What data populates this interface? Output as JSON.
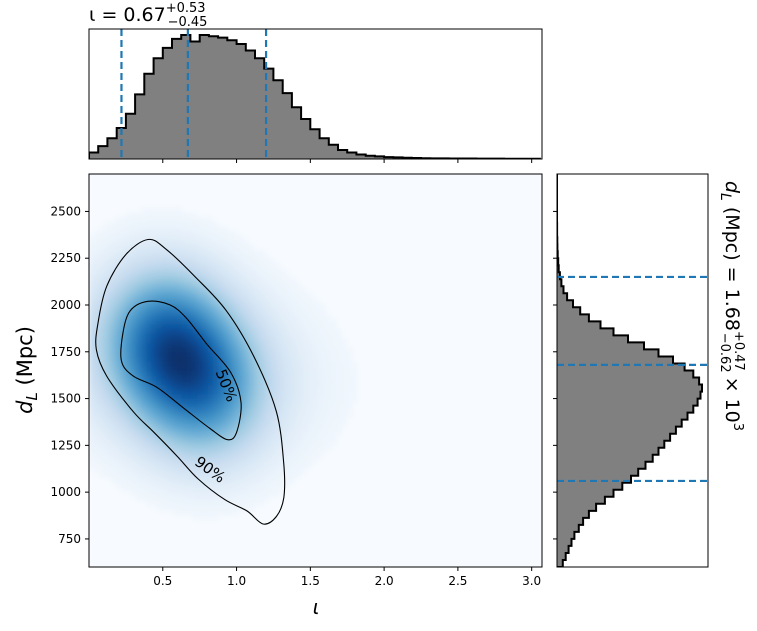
{
  "chart_data": [
    {
      "type": "heatmap",
      "xlabel": "ι",
      "ylabel": "d_L (Mpc)",
      "xlim": [
        0.0,
        3.07
      ],
      "ylim": [
        600,
        2700
      ],
      "x_ticks": [
        "0.5",
        "1.0",
        "1.5",
        "2.0",
        "2.5",
        "3.0"
      ],
      "y_ticks": [
        "750",
        "1000",
        "1250",
        "1500",
        "1750",
        "2000",
        "2250",
        "2500"
      ],
      "colormap": "Blues",
      "density_peaks": [
        {
          "x": 0.47,
          "y": 1850,
          "weight": 1.0
        },
        {
          "x": 0.8,
          "y": 1530,
          "weight": 0.9
        },
        {
          "x": 0.62,
          "y": 1720,
          "weight": 0.7
        }
      ],
      "contours": [
        {
          "label": "50%",
          "points": [
            [
              0.22,
              1700
            ],
            [
              0.23,
              1850
            ],
            [
              0.28,
              1970
            ],
            [
              0.4,
              2020
            ],
            [
              0.55,
              2000
            ],
            [
              0.66,
              1930
            ],
            [
              0.8,
              1790
            ],
            [
              0.96,
              1640
            ],
            [
              1.03,
              1480
            ],
            [
              1.0,
              1320
            ],
            [
              0.94,
              1280
            ],
            [
              0.82,
              1340
            ],
            [
              0.64,
              1450
            ],
            [
              0.46,
              1560
            ],
            [
              0.3,
              1620
            ]
          ]
        },
        {
          "label": "90%",
          "points": [
            [
              0.06,
              1900
            ],
            [
              0.12,
              2100
            ],
            [
              0.25,
              2270
            ],
            [
              0.4,
              2350
            ],
            [
              0.52,
              2300
            ],
            [
              0.72,
              2150
            ],
            [
              0.93,
              1970
            ],
            [
              1.12,
              1720
            ],
            [
              1.27,
              1430
            ],
            [
              1.32,
              1150
            ],
            [
              1.32,
              970
            ],
            [
              1.27,
              870
            ],
            [
              1.18,
              830
            ],
            [
              1.07,
              900
            ],
            [
              0.92,
              960
            ],
            [
              0.74,
              1070
            ],
            [
              0.6,
              1190
            ],
            [
              0.44,
              1320
            ],
            [
              0.3,
              1430
            ],
            [
              0.12,
              1620
            ],
            [
              0.05,
              1760
            ]
          ]
        }
      ]
    },
    {
      "type": "histogram",
      "orientation": "vertical",
      "title": "ι = 0.67",
      "title_plus": "+0.53",
      "title_minus": "−0.45",
      "xlim": [
        0.0,
        3.07
      ],
      "bin_start": 0.0,
      "bin_width": 0.0625,
      "counts": [
        0.05,
        0.1,
        0.16,
        0.24,
        0.35,
        0.5,
        0.66,
        0.78,
        0.86,
        0.93,
        0.96,
        0.91,
        0.96,
        0.95,
        0.94,
        0.92,
        0.89,
        0.84,
        0.78,
        0.7,
        0.61,
        0.51,
        0.4,
        0.31,
        0.23,
        0.16,
        0.11,
        0.07,
        0.05,
        0.035,
        0.025,
        0.02,
        0.015,
        0.012,
        0.01,
        0.008,
        0.006,
        0.005,
        0.005,
        0.004,
        0.004,
        0.004,
        0.003,
        0.003,
        0.003,
        0.002,
        0.002,
        0.002,
        0.002
      ],
      "quantile_lines": [
        0.22,
        0.67,
        1.2
      ],
      "fill_color": "#808080",
      "line_color": "#1f77b4"
    },
    {
      "type": "histogram",
      "orientation": "horizontal",
      "title": "d_L (Mpc) = 1.68",
      "title_plus": "+0.47",
      "title_minus": "−0.62",
      "title_suffix": "× 10",
      "title_exponent": "3",
      "ylim": [
        600,
        2700
      ],
      "bin_start": 600,
      "bin_width": 37.5,
      "counts": [
        0.04,
        0.06,
        0.08,
        0.1,
        0.12,
        0.15,
        0.18,
        0.22,
        0.27,
        0.33,
        0.39,
        0.45,
        0.51,
        0.56,
        0.61,
        0.66,
        0.7,
        0.74,
        0.78,
        0.82,
        0.86,
        0.9,
        0.94,
        0.97,
        0.99,
        1.0,
        0.98,
        0.94,
        0.88,
        0.8,
        0.7,
        0.6,
        0.49,
        0.39,
        0.3,
        0.22,
        0.16,
        0.11,
        0.07,
        0.045,
        0.03,
        0.02,
        0.012,
        0.008,
        0.005,
        0.003,
        0.002,
        0.001,
        0.001,
        0.0,
        0.0,
        0.0,
        0.0,
        0.0,
        0.0,
        0.0
      ],
      "quantile_lines": [
        1060,
        1680,
        2150
      ],
      "fill_color": "#808080",
      "line_color": "#1f77b4"
    }
  ]
}
